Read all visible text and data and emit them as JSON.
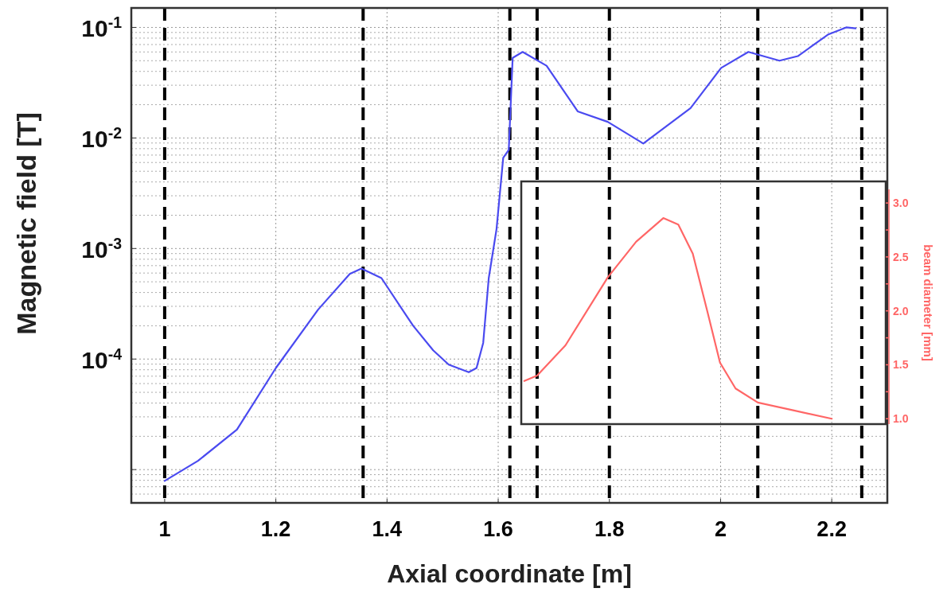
{
  "chart_data": {
    "type": "line",
    "xlabel": "Axial coordinate [m]",
    "ylabel": "Magnetic field [T]",
    "y2label": "beam diameter [mm]",
    "log": "y",
    "grid": true,
    "xlim": [
      0.94,
      2.3
    ],
    "xticks": [
      1,
      1.2,
      1.4,
      1.6,
      1.8,
      2,
      2.2
    ],
    "ylim": [
      5e-06,
      0.15
    ],
    "yticks": [
      {
        "value": 0.1,
        "label": "10$^{-1}$"
      },
      {
        "value": 0.01,
        "label": "10$^{-2}$"
      },
      {
        "value": 0.001,
        "label": "10$^{-3}$"
      },
      {
        "value": 0.0001,
        "label": "10$^{-4}$"
      },
      {
        "value": 1e-05,
        "label": null
      }
    ],
    "y2lim": [
      0.95,
      3.2
    ],
    "y2ticks": [
      {
        "value": 1,
        "label": "1.0"
      },
      {
        "value": 1.25,
        "label": null
      },
      1.5,
      {
        "value": 1.75,
        "label": null
      },
      {
        "value": 2,
        "label": "2.0"
      },
      {
        "value": 2.25,
        "label": null
      },
      2.5,
      {
        "value": 2.75,
        "label": null
      },
      {
        "value": 3,
        "label": "3.0"
      }
    ],
    "series": [
      {
        "color": "#4a4af0",
        "x": [
          1.0,
          1.06,
          1.13,
          1.2,
          1.276,
          1.333,
          1.354,
          1.39,
          1.447,
          1.483,
          1.511,
          1.547,
          1.561,
          1.573,
          1.583,
          1.597,
          1.609,
          1.619,
          1.626,
          1.644,
          1.687,
          1.743,
          1.797,
          1.861,
          1.946,
          2.001,
          2.05,
          2.106,
          2.139,
          2.193,
          2.226,
          2.243
        ],
        "values": [
          7.9e-06,
          1.2e-05,
          2.3e-05,
          8.3e-05,
          0.00028,
          0.00059,
          0.00066,
          0.00054,
          0.0002,
          0.00012,
          8.9e-05,
          7.6e-05,
          8.3e-05,
          0.00014,
          0.00054,
          0.0015,
          0.0066,
          0.0078,
          0.053,
          0.06,
          0.045,
          0.0174,
          0.014,
          0.0089,
          0.0186,
          0.043,
          0.06,
          0.05,
          0.055,
          0.086,
          0.1,
          0.098
        ]
      },
      {
        "color": "#ff6666",
        "axis": "y2",
        "x": [
          1.647,
          1.67,
          1.721,
          1.797,
          1.848,
          1.897,
          1.924,
          1.95,
          1.976,
          1.999,
          2.027,
          2.067,
          2.129,
          2.2
        ],
        "values": [
          1.35,
          1.4,
          1.68,
          2.31,
          2.64,
          2.86,
          2.8,
          2.53,
          2.0,
          1.52,
          1.28,
          1.15,
          1.08,
          1.0
        ]
      }
    ],
    "ref_lines": [
      {
        "axis": "x",
        "value": 1.0,
        "color": "#000000",
        "line_style": "dashed"
      },
      {
        "axis": "x",
        "value": 1.357,
        "color": "#000000",
        "line_style": "dashed"
      },
      {
        "axis": "x",
        "value": 1.621,
        "color": "#000000",
        "line_style": "dashed"
      },
      {
        "axis": "x",
        "value": 1.67,
        "color": "#000000",
        "line_style": "dashed"
      },
      {
        "axis": "x",
        "value": 1.8,
        "color": "#000000",
        "line_style": "dashed"
      },
      {
        "axis": "x",
        "value": 2.067,
        "color": "#000000",
        "line_style": "dashed"
      },
      {
        "axis": "x",
        "value": 2.254,
        "color": "#000000",
        "line_style": "dashed"
      }
    ]
  }
}
